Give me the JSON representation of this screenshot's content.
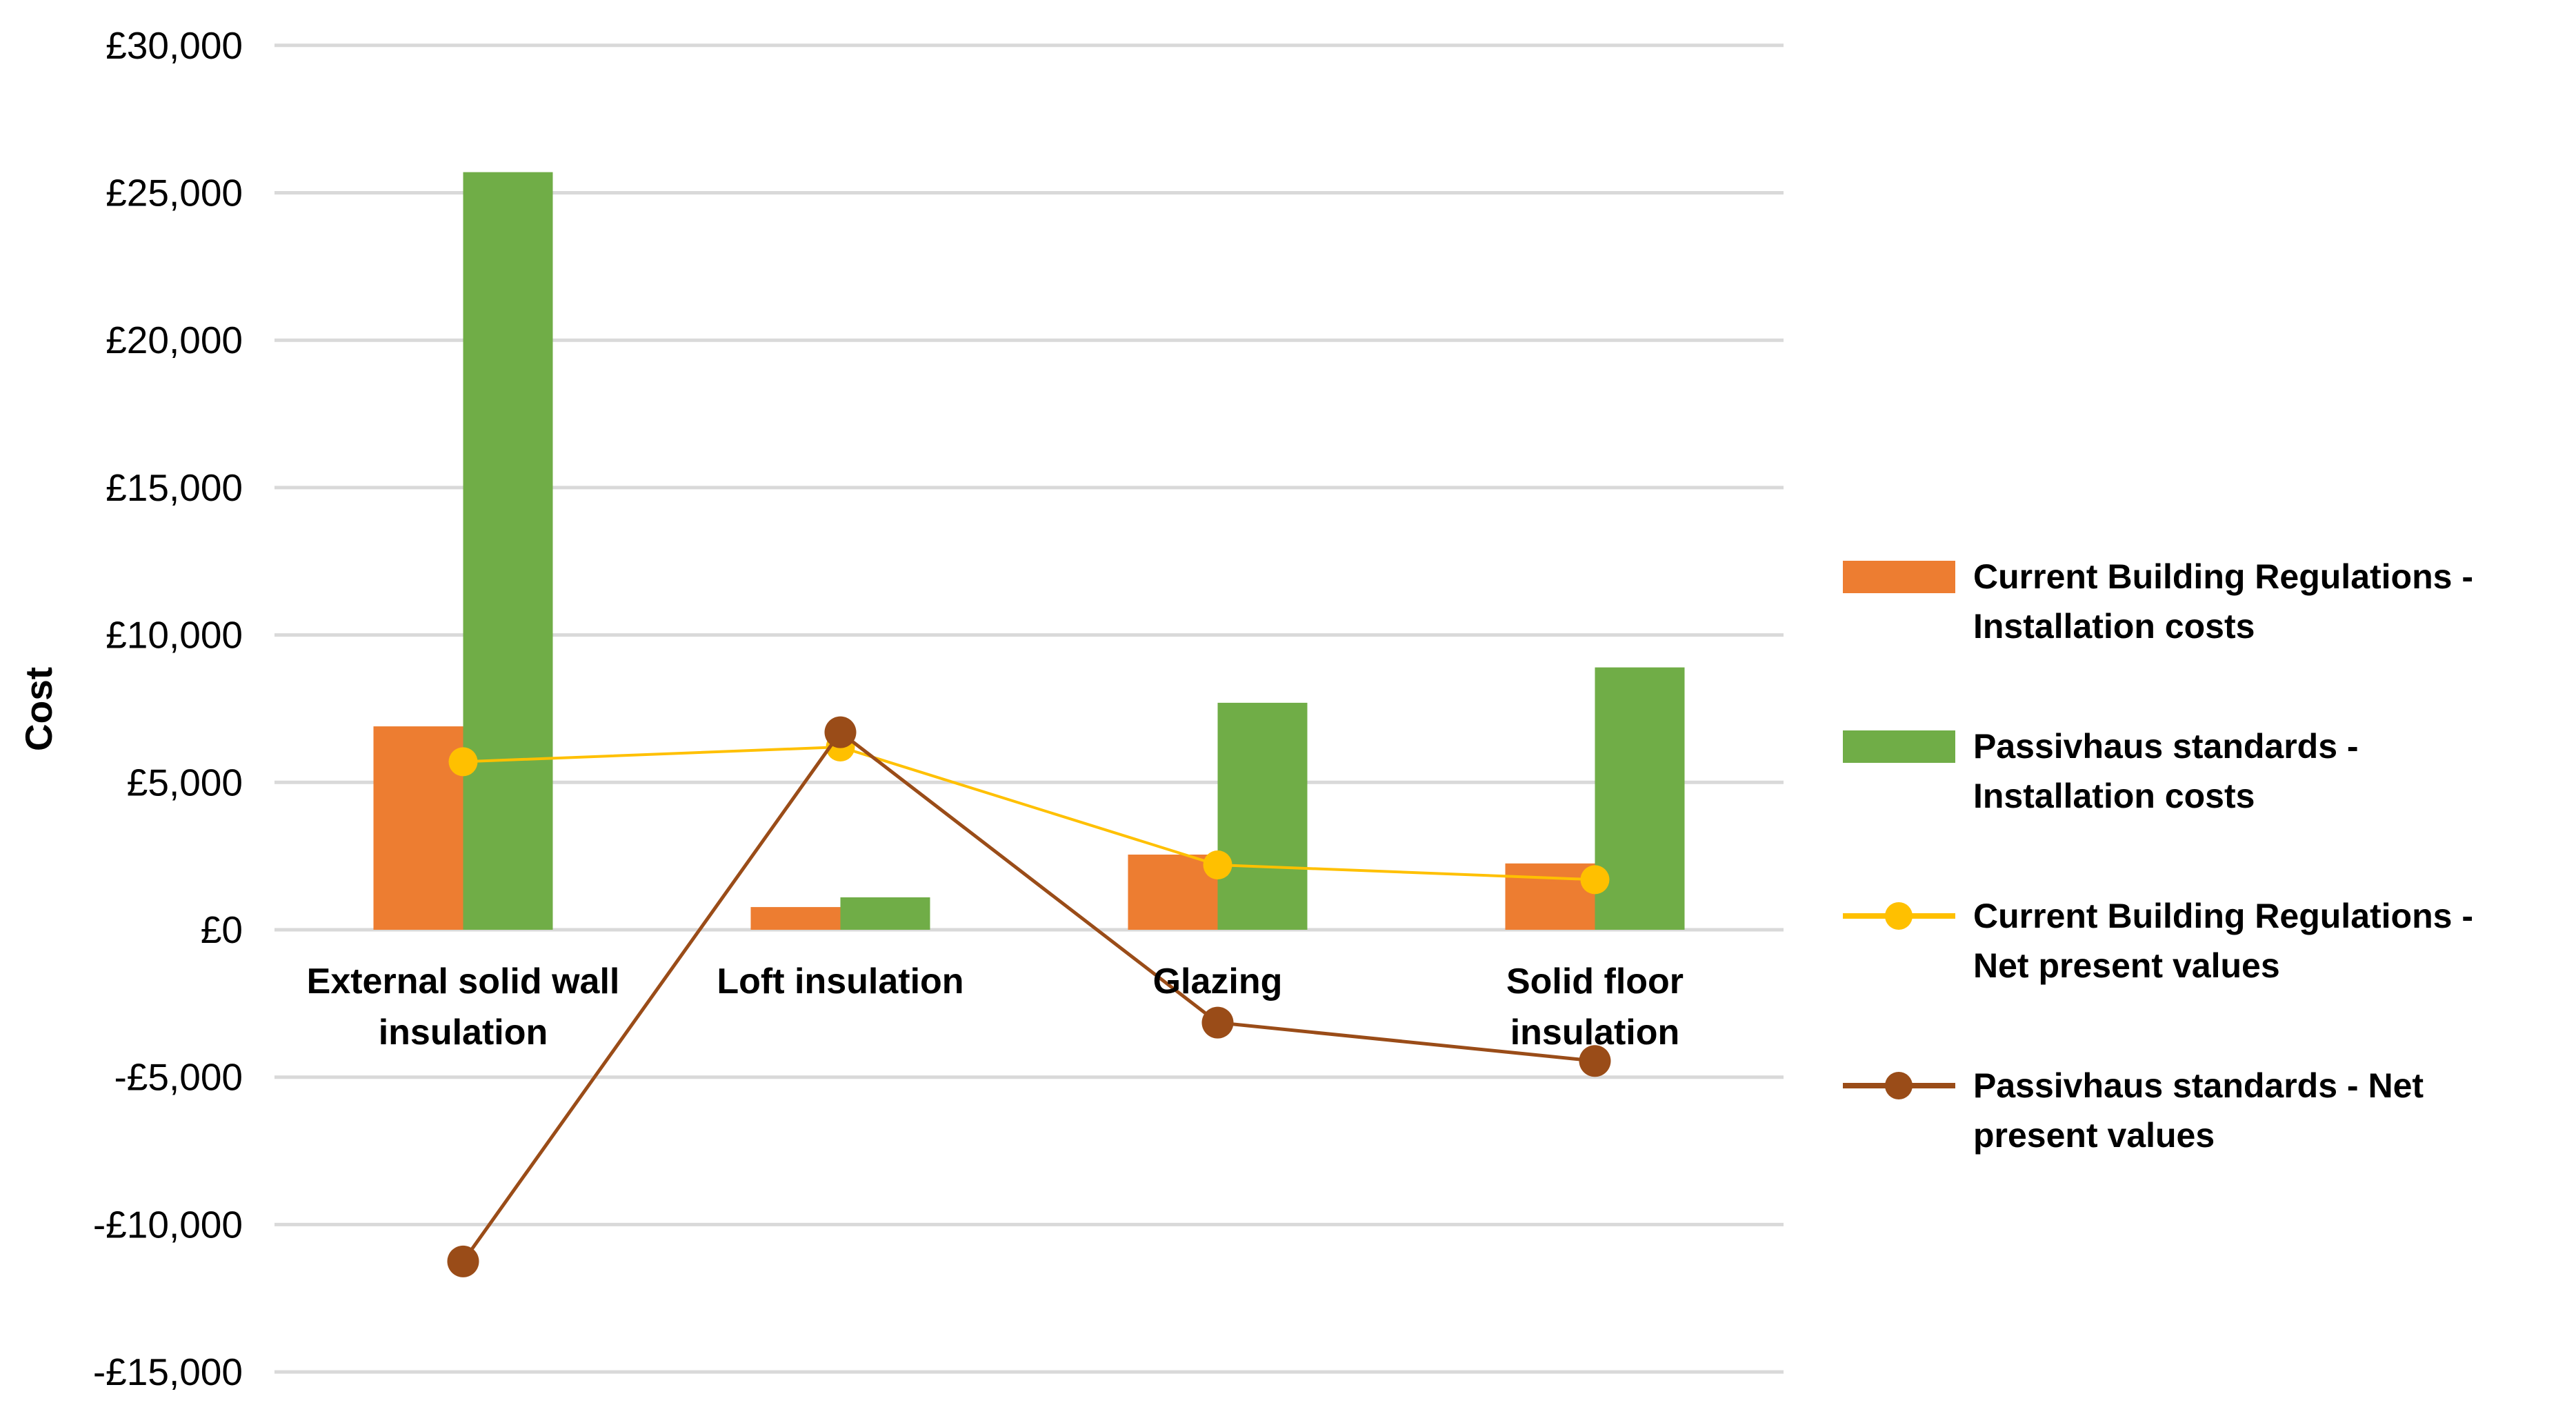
{
  "chart_data": {
    "type": "combo-bar-line",
    "title": "",
    "ylabel": "Cost",
    "categories": [
      "External solid wall insulation",
      "Loft insulation",
      "Glazing",
      "Solid floor insulation"
    ],
    "category_display_lines": [
      [
        "External solid wall",
        "insulation"
      ],
      [
        "Loft insulation"
      ],
      [
        "Glazing"
      ],
      [
        "Solid floor",
        "insulation"
      ]
    ],
    "series": [
      {
        "name": "Current Building Regulations - Installation costs",
        "type": "bar",
        "color": "#ED7D31",
        "values": [
          6900,
          770,
          2550,
          2250
        ]
      },
      {
        "name": "Passivhaus standards - Installation costs",
        "type": "bar",
        "color": "#70AD47",
        "values": [
          25700,
          1100,
          7700,
          8900
        ]
      },
      {
        "name": "Current Building Regulations - Net present values",
        "type": "line",
        "color": "#FFC000",
        "values": [
          5700,
          6200,
          2200,
          1700
        ]
      },
      {
        "name": "Passivhaus standards - Net present values",
        "type": "line",
        "color": "#9A4C18",
        "values": [
          -11250,
          6700,
          -3150,
          -4450
        ]
      }
    ],
    "ylim": [
      -15000,
      30000
    ],
    "ytick_step": 5000,
    "yticks": [
      {
        "value": 30000,
        "label": "£30,000"
      },
      {
        "value": 25000,
        "label": "£25,000"
      },
      {
        "value": 20000,
        "label": "£20,000"
      },
      {
        "value": 15000,
        "label": "£15,000"
      },
      {
        "value": 10000,
        "label": "£10,000"
      },
      {
        "value": 5000,
        "label": "£5,000"
      },
      {
        "value": 0,
        "label": "£0"
      },
      {
        "value": -5000,
        "label": "-£5,000"
      },
      {
        "value": -10000,
        "label": "-£10,000"
      },
      {
        "value": -15000,
        "label": "-£15,000"
      }
    ],
    "grid": true,
    "legend_position": "right",
    "colors": {
      "background": "#FFFFFF",
      "gridline": "#D9D9D9",
      "text": "#000000"
    }
  },
  "legend": {
    "items": [
      {
        "marker": "bar-swatch",
        "series_index": 0,
        "lines": [
          "Current Building Regulations -",
          "Installation costs"
        ]
      },
      {
        "marker": "bar-swatch",
        "series_index": 1,
        "lines": [
          "Passivhaus standards -",
          "Installation costs"
        ]
      },
      {
        "marker": "line-dot",
        "series_index": 2,
        "lines": [
          "Current Building Regulations -",
          "Net present values"
        ]
      },
      {
        "marker": "line-dot",
        "series_index": 3,
        "lines": [
          "Passivhaus standards - Net",
          "present values"
        ]
      }
    ]
  }
}
